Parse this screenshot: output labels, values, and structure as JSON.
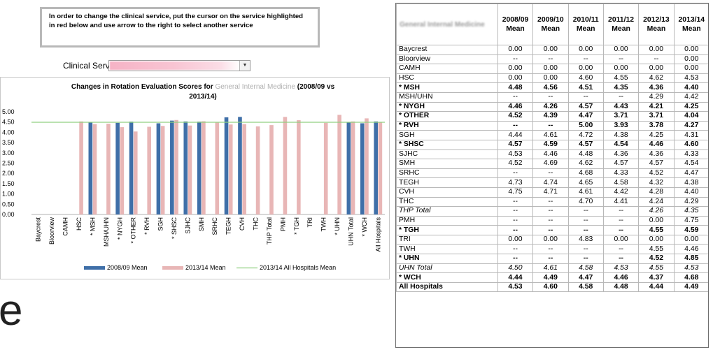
{
  "instruction": "In order to change the clinical service, put the cursor on the service highlighted in red below and use arrow to the right to select another service",
  "clinical_service_label": "Clinical Service:",
  "chart_data": {
    "type": "bar",
    "title_prefix": "Changes in Rotation Evaluation Scores for",
    "title_service": "General Internal Medicine",
    "title_suffix": "(2008/09 vs",
    "title_line2": "2013/14)",
    "categories": [
      "Baycrest",
      "Bloorview",
      "CAMH",
      "HSC",
      "* MSH",
      "MSH/UHN",
      "* NYGH",
      "* OTHER",
      "* RVH",
      "SGH",
      "* SHSC",
      "SJHC",
      "SMH",
      "SRHC",
      "TEGH",
      "CVH",
      "THC",
      "THP Total",
      "PMH",
      "* TGH",
      "TRI",
      "TWH",
      "* UHN",
      "UHN Total",
      "* WCH",
      "All Hospitals"
    ],
    "series": [
      {
        "name": "2008/09 Mean",
        "color": "#3f6fa8",
        "values": [
          0,
          null,
          0,
          0,
          4.48,
          null,
          4.46,
          4.52,
          null,
          4.44,
          4.57,
          4.53,
          4.52,
          null,
          4.73,
          4.75,
          null,
          null,
          null,
          null,
          0,
          null,
          null,
          4.5,
          4.44,
          4.53
        ]
      },
      {
        "name": "2013/14 Mean",
        "color": "#e8b6b6",
        "values": [
          0,
          0,
          0,
          4.53,
          4.4,
          4.42,
          4.25,
          4.04,
          4.27,
          4.31,
          4.6,
          4.33,
          4.54,
          4.47,
          4.38,
          4.4,
          4.29,
          4.35,
          4.75,
          4.59,
          0,
          4.46,
          4.85,
          4.53,
          4.68,
          4.49
        ]
      }
    ],
    "reference_line": {
      "name": "2013/14 All Hospitals Mean",
      "value": 4.49,
      "color": "#90d080"
    },
    "yticks": [
      "5.00",
      "4.50",
      "4.00",
      "3.50",
      "3.00",
      "2.50",
      "2.00",
      "1.50",
      "1.00",
      "0.50",
      "0.00"
    ],
    "ylim": [
      0,
      5
    ]
  },
  "table": {
    "service_header": "General Internal Medicine",
    "columns": [
      {
        "year": "2008/09",
        "label": "Mean"
      },
      {
        "year": "2009/10",
        "label": "Mean"
      },
      {
        "year": "2010/11",
        "label": "Mean"
      },
      {
        "year": "2011/12",
        "label": "Mean"
      },
      {
        "year": "2012/13",
        "label": "Mean"
      },
      {
        "year": "2013/14",
        "label": "Mean"
      }
    ],
    "rows": [
      {
        "name": "Baycrest",
        "style": "normal",
        "values": [
          "0.00",
          "0.00",
          "0.00",
          "0.00",
          "0.00",
          "0.00"
        ]
      },
      {
        "name": "Bloorview",
        "style": "normal",
        "values": [
          "--",
          "--",
          "--",
          "--",
          "--",
          "0.00"
        ]
      },
      {
        "name": "CAMH",
        "style": "normal",
        "values": [
          "0.00",
          "0.00",
          "0.00",
          "0.00",
          "0.00",
          "0.00"
        ]
      },
      {
        "name": "HSC",
        "style": "normal",
        "values": [
          "0.00",
          "0.00",
          "4.60",
          "4.55",
          "4.62",
          "4.53"
        ]
      },
      {
        "name": "* MSH",
        "style": "bold",
        "values": [
          "4.48",
          "4.56",
          "4.51",
          "4.35",
          "4.36",
          "4.40"
        ]
      },
      {
        "name": "MSH/UHN",
        "style": "normal",
        "values": [
          "--",
          "--",
          "--",
          "--",
          "4.29",
          "4.42"
        ]
      },
      {
        "name": "* NYGH",
        "style": "bold",
        "values": [
          "4.46",
          "4.26",
          "4.57",
          "4.43",
          "4.21",
          "4.25"
        ]
      },
      {
        "name": "* OTHER",
        "style": "bold",
        "values": [
          "4.52",
          "4.39",
          "4.47",
          "3.71",
          "3.71",
          "4.04"
        ]
      },
      {
        "name": "* RVH",
        "style": "bold",
        "values": [
          "--",
          "--",
          "5.00",
          "3.93",
          "3.78",
          "4.27"
        ]
      },
      {
        "name": "SGH",
        "style": "normal",
        "values": [
          "4.44",
          "4.61",
          "4.72",
          "4.38",
          "4.25",
          "4.31"
        ]
      },
      {
        "name": "* SHSC",
        "style": "bold",
        "values": [
          "4.57",
          "4.59",
          "4.57",
          "4.54",
          "4.46",
          "4.60"
        ]
      },
      {
        "name": "SJHC",
        "style": "normal",
        "values": [
          "4.53",
          "4.46",
          "4.48",
          "4.36",
          "4.36",
          "4.33"
        ]
      },
      {
        "name": "SMH",
        "style": "normal",
        "values": [
          "4.52",
          "4.69",
          "4.62",
          "4.57",
          "4.57",
          "4.54"
        ]
      },
      {
        "name": "SRHC",
        "style": "normal",
        "values": [
          "--",
          "--",
          "4.68",
          "4.33",
          "4.52",
          "4.47"
        ]
      },
      {
        "name": "TEGH",
        "style": "normal",
        "values": [
          "4.73",
          "4.74",
          "4.65",
          "4.58",
          "4.32",
          "4.38"
        ]
      },
      {
        "name": "CVH",
        "style": "normal",
        "values": [
          "4.75",
          "4.71",
          "4.61",
          "4.42",
          "4.28",
          "4.40"
        ]
      },
      {
        "name": "THC",
        "style": "normal",
        "values": [
          "--",
          "--",
          "4.70",
          "4.41",
          "4.24",
          "4.29"
        ]
      },
      {
        "name": "THP Total",
        "style": "italic",
        "values": [
          "--",
          "--",
          "--",
          "--",
          "4.26",
          "4.35"
        ]
      },
      {
        "name": "PMH",
        "style": "normal",
        "values": [
          "--",
          "--",
          "--",
          "--",
          "0.00",
          "4.75"
        ]
      },
      {
        "name": "* TGH",
        "style": "bold",
        "values": [
          "--",
          "--",
          "--",
          "--",
          "4.55",
          "4.59"
        ]
      },
      {
        "name": "TRI",
        "style": "normal",
        "values": [
          "0.00",
          "0.00",
          "4.83",
          "0.00",
          "0.00",
          "0.00"
        ]
      },
      {
        "name": "TWH",
        "style": "normal",
        "values": [
          "--",
          "--",
          "--",
          "--",
          "4.55",
          "4.46"
        ]
      },
      {
        "name": "* UHN",
        "style": "bold",
        "values": [
          "--",
          "--",
          "--",
          "--",
          "4.52",
          "4.85"
        ]
      },
      {
        "name": "UHN Total",
        "style": "italic",
        "values": [
          "4.50",
          "4.61",
          "4.58",
          "4.53",
          "4.55",
          "4.53"
        ]
      },
      {
        "name": "* WCH",
        "style": "bold",
        "values": [
          "4.44",
          "4.49",
          "4.47",
          "4.46",
          "4.37",
          "4.68"
        ]
      },
      {
        "name": "All Hospitals",
        "style": "bold",
        "values": [
          "4.53",
          "4.60",
          "4.58",
          "4.48",
          "4.44",
          "4.49"
        ]
      }
    ]
  },
  "big_letter": "e"
}
